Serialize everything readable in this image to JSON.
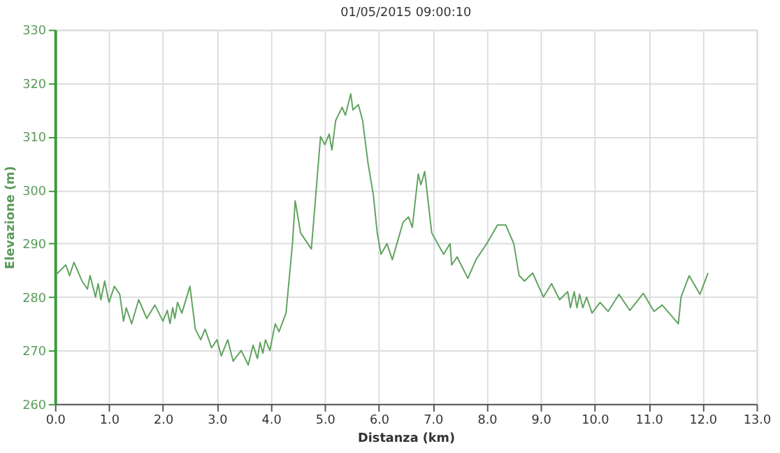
{
  "chart_data": {
    "type": "line",
    "title": "01/05/2015 09:00:10",
    "xlabel": "Distanza (km)",
    "ylabel": "Elevazione (m)",
    "xlim": [
      0,
      13
    ],
    "xticks": [
      {
        "value": 0,
        "label": "0.0"
      },
      {
        "value": 1,
        "label": "1.0"
      },
      {
        "value": 2,
        "label": "2.0"
      },
      {
        "value": 3,
        "label": "3.0"
      },
      {
        "value": 4,
        "label": "4.0"
      },
      {
        "value": 5,
        "label": "5.0"
      },
      {
        "value": 6,
        "label": "6.0"
      },
      {
        "value": 7,
        "label": "7.0"
      },
      {
        "value": 8,
        "label": "8.0"
      },
      {
        "value": 9,
        "label": "9.0"
      },
      {
        "value": 10,
        "label": "10.0"
      },
      {
        "value": 11,
        "label": "11.0"
      },
      {
        "value": 12,
        "label": "12.0"
      },
      {
        "value": 13,
        "label": "13.0"
      }
    ],
    "ylim": [
      260,
      330
    ],
    "yticks": [
      260,
      270,
      280,
      290,
      300,
      310,
      320,
      330
    ],
    "grid": true,
    "marker": "none",
    "line_style": "solid",
    "series": [
      {
        "color": "#5fa35f",
        "x": [
          0,
          0.2,
          0.27,
          0.35,
          0.5,
          0.6,
          0.65,
          0.75,
          0.8,
          0.85,
          0.92,
          1.0,
          1.1,
          1.2,
          1.27,
          1.32,
          1.42,
          1.55,
          1.7,
          1.85,
          2.0,
          2.08,
          2.13,
          2.18,
          2.22,
          2.27,
          2.35,
          2.5,
          2.6,
          2.7,
          2.78,
          2.9,
          3.0,
          3.08,
          3.2,
          3.3,
          3.45,
          3.58,
          3.67,
          3.75,
          3.8,
          3.85,
          3.9,
          3.98,
          4.08,
          4.15,
          4.28,
          4.4,
          4.45,
          4.55,
          4.75,
          4.92,
          5.0,
          5.08,
          5.13,
          5.2,
          5.32,
          5.38,
          5.48,
          5.52,
          5.62,
          5.7,
          5.8,
          5.9,
          5.97,
          6.04,
          6.15,
          6.25,
          6.45,
          6.55,
          6.62,
          6.73,
          6.78,
          6.85,
          6.98,
          7.2,
          7.32,
          7.35,
          7.45,
          7.65,
          7.8,
          8.0,
          8.2,
          8.35,
          8.5,
          8.6,
          8.7,
          8.85,
          9.05,
          9.2,
          9.35,
          9.5,
          9.55,
          9.62,
          9.67,
          9.72,
          9.78,
          9.85,
          9.95,
          10.1,
          10.25,
          10.45,
          10.65,
          10.9,
          11.1,
          11.25,
          11.55,
          11.6,
          11.75,
          11.95,
          12.1
        ],
        "values": [
          284,
          286,
          284,
          286.5,
          283,
          281.5,
          284,
          280,
          282.5,
          279.5,
          283,
          279,
          282,
          280.5,
          275.5,
          278,
          275,
          279.5,
          276,
          278.5,
          275.5,
          277.5,
          275,
          278,
          276,
          279,
          277,
          282,
          274,
          272,
          274,
          270.5,
          272,
          269,
          272,
          268,
          270,
          267.3,
          271,
          268.5,
          271.5,
          269.5,
          272,
          270,
          275,
          273.5,
          277,
          290,
          298,
          292,
          289,
          310,
          308.5,
          310.5,
          307.5,
          313,
          315.5,
          314,
          318,
          315,
          316,
          313,
          305,
          299,
          292,
          288,
          290,
          287,
          294,
          295,
          293,
          303,
          301,
          303.5,
          292,
          288,
          290,
          286,
          287.5,
          283.5,
          287,
          290,
          293.5,
          293.5,
          290,
          284,
          283,
          284.5,
          280,
          282.5,
          279.5,
          281,
          278,
          281,
          278,
          280.5,
          278,
          280,
          277,
          279,
          277.3,
          280.5,
          277.5,
          280.7,
          277.3,
          278.5,
          275,
          280,
          284,
          280.5,
          284.5
        ]
      }
    ]
  }
}
